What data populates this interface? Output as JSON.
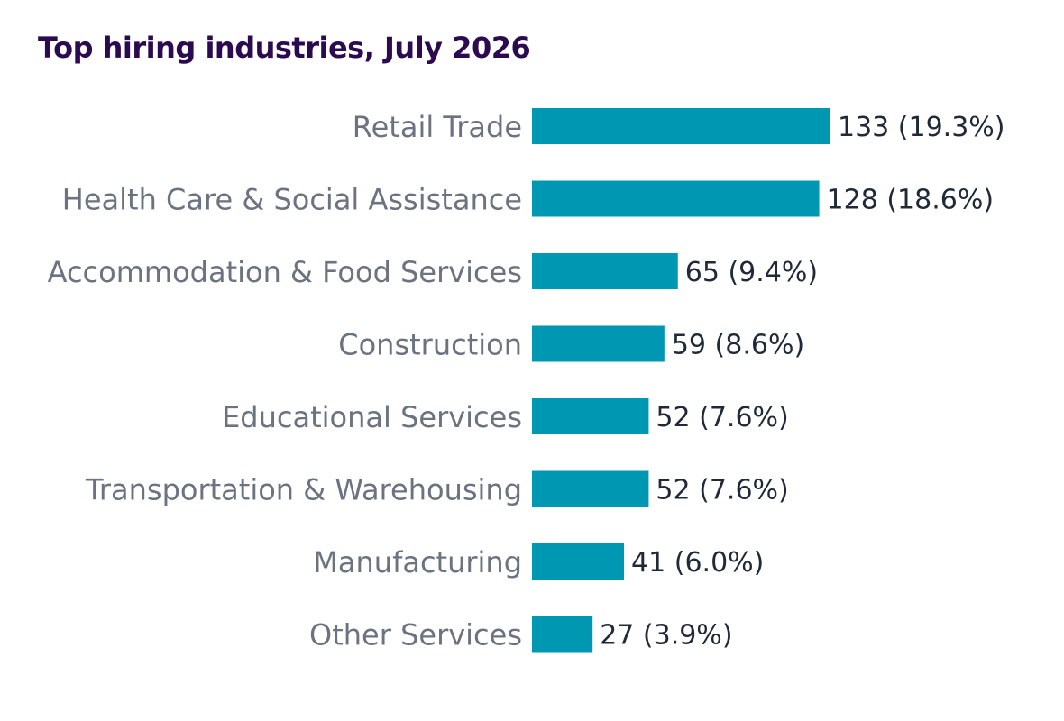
{
  "chart_data": {
    "type": "bar",
    "orientation": "horizontal",
    "title": "Top hiring industries, July 2026",
    "xlabel": "",
    "ylabel": "",
    "categories": [
      "Retail Trade",
      "Health Care & Social Assistance",
      "Accommodation & Food Services",
      "Construction",
      "Educational Services",
      "Transportation & Warehousing",
      "Manufacturing",
      "Other Services"
    ],
    "values": [
      133,
      128,
      65,
      59,
      52,
      52,
      41,
      27
    ],
    "percentages": [
      "19.3%",
      "18.6%",
      "9.4%",
      "8.6%",
      "7.6%",
      "7.6%",
      "6.0%",
      "3.9%"
    ],
    "xlim": [
      0,
      133
    ],
    "grid": false,
    "legend": "none",
    "colors": {
      "bar": "#0097b2",
      "title": "#2b0a4f",
      "category_label": "#6b7280",
      "value_label": "#1f2937"
    }
  }
}
